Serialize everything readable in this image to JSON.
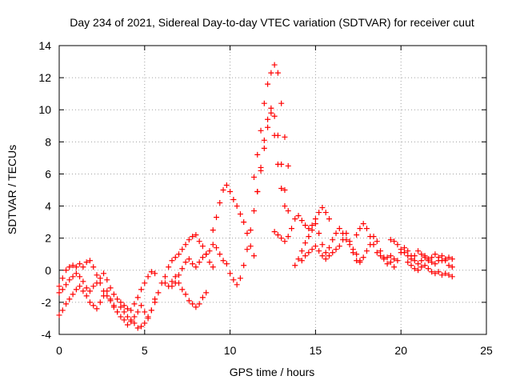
{
  "chart_data": {
    "type": "scatter",
    "title": "Day 234 of 2021, Sidereal Day-to-day VTEC variation (SDTVAR) for receiver cuut",
    "xlabel": "GPS time / hours",
    "ylabel": "SDTVAR / TECUs",
    "xlim": [
      0,
      25
    ],
    "ylim": [
      -4,
      14
    ],
    "x_ticks": [
      0,
      5,
      10,
      15,
      20,
      25
    ],
    "y_ticks": [
      -4,
      -2,
      0,
      2,
      4,
      6,
      8,
      10,
      12,
      14
    ],
    "grid": true,
    "marker": "+",
    "series": [
      {
        "name": "SDTVAR",
        "color": "#ff0000",
        "points": [
          [
            0.0,
            -1.0
          ],
          [
            0.2,
            -0.5
          ],
          [
            0.4,
            0.0
          ],
          [
            0.6,
            0.2
          ],
          [
            0.8,
            0.3
          ],
          [
            1.0,
            0.2
          ],
          [
            1.2,
            0.4
          ],
          [
            1.4,
            0.2
          ],
          [
            1.6,
            0.5
          ],
          [
            1.8,
            0.6
          ],
          [
            2.0,
            0.2
          ],
          [
            2.2,
            -0.3
          ],
          [
            2.4,
            -0.8
          ],
          [
            2.6,
            -1.3
          ],
          [
            2.8,
            -1.6
          ],
          [
            3.0,
            -1.9
          ],
          [
            3.2,
            -2.3
          ],
          [
            3.4,
            -2.6
          ],
          [
            3.6,
            -2.9
          ],
          [
            3.8,
            -3.1
          ],
          [
            4.0,
            -3.4
          ],
          [
            4.2,
            -3.2
          ],
          [
            4.4,
            -2.9
          ],
          [
            4.6,
            -2.6
          ],
          [
            4.8,
            -2.2
          ],
          [
            5.0,
            -2.6
          ],
          [
            5.2,
            -3.0
          ],
          [
            5.4,
            -2.5
          ],
          [
            5.6,
            -1.8
          ],
          [
            0.0,
            -1.4
          ],
          [
            0.2,
            -1.2
          ],
          [
            0.4,
            -0.9
          ],
          [
            0.6,
            -0.6
          ],
          [
            0.8,
            -0.4
          ],
          [
            1.0,
            -0.2
          ],
          [
            1.2,
            -0.4
          ],
          [
            1.4,
            -0.7
          ],
          [
            1.6,
            -1.1
          ],
          [
            1.8,
            -1.3
          ],
          [
            2.0,
            -1.0
          ],
          [
            2.2,
            -0.8
          ],
          [
            2.4,
            -0.5
          ],
          [
            2.6,
            -0.2
          ],
          [
            2.8,
            -0.6
          ],
          [
            3.0,
            -1.1
          ],
          [
            3.2,
            -1.5
          ],
          [
            3.4,
            -1.8
          ],
          [
            3.6,
            -2.0
          ],
          [
            3.8,
            -2.2
          ],
          [
            4.0,
            -2.4
          ],
          [
            4.2,
            -2.5
          ],
          [
            4.4,
            -2.1
          ],
          [
            4.6,
            -1.7
          ],
          [
            4.8,
            -1.2
          ],
          [
            5.0,
            -0.8
          ],
          [
            5.2,
            -0.4
          ],
          [
            5.4,
            -0.1
          ],
          [
            5.6,
            -0.2
          ],
          [
            0.0,
            -2.8
          ],
          [
            0.2,
            -2.5
          ],
          [
            0.4,
            -2.1
          ],
          [
            0.6,
            -1.8
          ],
          [
            0.8,
            -1.5
          ],
          [
            1.0,
            -1.2
          ],
          [
            1.2,
            -1.0
          ],
          [
            1.4,
            -1.3
          ],
          [
            1.6,
            -1.6
          ],
          [
            1.8,
            -2.0
          ],
          [
            2.0,
            -2.2
          ],
          [
            2.2,
            -2.4
          ],
          [
            2.4,
            -2.0
          ],
          [
            2.6,
            -1.6
          ],
          [
            2.8,
            -1.3
          ],
          [
            3.0,
            -1.8
          ],
          [
            3.2,
            -2.2
          ],
          [
            3.4,
            -2.6
          ],
          [
            3.6,
            -2.3
          ],
          [
            3.8,
            -2.6
          ],
          [
            4.0,
            -2.9
          ],
          [
            4.2,
            -3.1
          ],
          [
            4.4,
            -3.3
          ],
          [
            4.6,
            -3.6
          ],
          [
            4.8,
            -3.5
          ],
          [
            5.0,
            -3.3
          ],
          [
            5.2,
            -2.9
          ],
          [
            5.4,
            -2.5
          ],
          [
            5.6,
            -2.0
          ],
          [
            5.8,
            -1.4
          ],
          [
            6.0,
            -0.8
          ],
          [
            6.2,
            -0.4
          ],
          [
            6.4,
            0.2
          ],
          [
            6.6,
            0.6
          ],
          [
            6.8,
            0.8
          ],
          [
            7.0,
            1.0
          ],
          [
            7.2,
            1.3
          ],
          [
            7.4,
            1.6
          ],
          [
            7.6,
            1.9
          ],
          [
            7.8,
            2.1
          ],
          [
            8.0,
            2.2
          ],
          [
            8.2,
            1.8
          ],
          [
            8.4,
            1.5
          ],
          [
            8.6,
            1.0
          ],
          [
            8.8,
            0.5
          ],
          [
            9.0,
            0.2
          ],
          [
            6.2,
            -0.8
          ],
          [
            6.4,
            -1.0
          ],
          [
            6.6,
            -0.7
          ],
          [
            6.8,
            -0.4
          ],
          [
            7.0,
            -0.8
          ],
          [
            7.2,
            -1.2
          ],
          [
            7.4,
            -1.5
          ],
          [
            7.6,
            -1.9
          ],
          [
            7.8,
            -2.1
          ],
          [
            8.0,
            -2.3
          ],
          [
            8.2,
            -2.1
          ],
          [
            8.4,
            -1.7
          ],
          [
            8.6,
            -1.4
          ],
          [
            6.6,
            -1.0
          ],
          [
            6.8,
            -0.8
          ],
          [
            7.0,
            -0.3
          ],
          [
            7.2,
            0.1
          ],
          [
            7.4,
            0.5
          ],
          [
            7.6,
            0.7
          ],
          [
            7.8,
            0.4
          ],
          [
            8.0,
            0.2
          ],
          [
            8.2,
            0.5
          ],
          [
            8.4,
            0.8
          ],
          [
            8.6,
            1.0
          ],
          [
            8.8,
            1.2
          ],
          [
            9.0,
            1.6
          ],
          [
            9.2,
            1.4
          ],
          [
            9.4,
            1.0
          ],
          [
            9.0,
            2.5
          ],
          [
            9.2,
            3.3
          ],
          [
            9.4,
            4.2
          ],
          [
            9.6,
            5.0
          ],
          [
            9.8,
            5.3
          ],
          [
            10.0,
            4.9
          ],
          [
            10.2,
            4.4
          ],
          [
            10.4,
            4.0
          ],
          [
            10.6,
            3.5
          ],
          [
            10.8,
            3.0
          ],
          [
            11.0,
            2.3
          ],
          [
            11.2,
            1.5
          ],
          [
            11.4,
            0.9
          ],
          [
            9.6,
            0.6
          ],
          [
            9.8,
            0.4
          ],
          [
            10.0,
            -0.2
          ],
          [
            10.2,
            -0.6
          ],
          [
            10.4,
            -0.9
          ],
          [
            10.6,
            -0.5
          ],
          [
            10.8,
            0.3
          ],
          [
            11.0,
            1.3
          ],
          [
            11.2,
            2.5
          ],
          [
            11.4,
            3.7
          ],
          [
            11.6,
            4.9
          ],
          [
            11.8,
            6.2
          ],
          [
            12.0,
            7.6
          ],
          [
            12.2,
            8.9
          ],
          [
            12.4,
            9.8
          ],
          [
            12.6,
            8.4
          ],
          [
            12.8,
            6.6
          ],
          [
            13.0,
            5.1
          ],
          [
            13.2,
            4.0
          ],
          [
            11.4,
            5.8
          ],
          [
            11.6,
            7.2
          ],
          [
            11.8,
            8.7
          ],
          [
            12.0,
            10.4
          ],
          [
            12.2,
            11.6
          ],
          [
            12.4,
            12.3
          ],
          [
            12.6,
            12.8
          ],
          [
            12.8,
            12.3
          ],
          [
            13.0,
            10.4
          ],
          [
            13.2,
            8.3
          ],
          [
            13.4,
            6.5
          ],
          [
            11.6,
            4.9
          ],
          [
            11.8,
            6.4
          ],
          [
            12.0,
            8.1
          ],
          [
            12.2,
            9.4
          ],
          [
            12.4,
            10.1
          ],
          [
            12.6,
            9.6
          ],
          [
            12.8,
            8.4
          ],
          [
            13.0,
            6.6
          ],
          [
            13.2,
            5.0
          ],
          [
            13.4,
            3.7
          ],
          [
            12.6,
            2.4
          ],
          [
            12.8,
            2.2
          ],
          [
            13.0,
            2.0
          ],
          [
            13.2,
            1.8
          ],
          [
            13.4,
            2.1
          ],
          [
            13.6,
            2.6
          ],
          [
            13.8,
            3.2
          ],
          [
            14.0,
            3.4
          ],
          [
            14.2,
            3.1
          ],
          [
            14.4,
            2.8
          ],
          [
            14.6,
            2.6
          ],
          [
            14.8,
            2.8
          ],
          [
            15.0,
            3.2
          ],
          [
            15.2,
            3.6
          ],
          [
            15.4,
            3.9
          ],
          [
            15.6,
            3.6
          ],
          [
            15.8,
            3.2
          ],
          [
            13.8,
            0.3
          ],
          [
            14.0,
            0.7
          ],
          [
            14.2,
            1.2
          ],
          [
            14.4,
            1.7
          ],
          [
            14.6,
            2.1
          ],
          [
            14.8,
            2.5
          ],
          [
            15.0,
            2.9
          ],
          [
            15.2,
            2.3
          ],
          [
            15.4,
            1.6
          ],
          [
            15.6,
            1.1
          ],
          [
            15.8,
            1.4
          ],
          [
            16.0,
            1.9
          ],
          [
            16.2,
            2.3
          ],
          [
            16.4,
            2.6
          ],
          [
            16.6,
            2.3
          ],
          [
            16.8,
            1.9
          ],
          [
            17.0,
            1.6
          ],
          [
            17.2,
            1.3
          ],
          [
            17.4,
            1.0
          ],
          [
            14.2,
            0.6
          ],
          [
            14.4,
            0.9
          ],
          [
            14.6,
            1.1
          ],
          [
            14.8,
            1.3
          ],
          [
            15.0,
            1.5
          ],
          [
            15.2,
            1.2
          ],
          [
            15.4,
            0.9
          ],
          [
            15.6,
            0.7
          ],
          [
            15.8,
            0.9
          ],
          [
            16.0,
            1.1
          ],
          [
            16.2,
            1.3
          ],
          [
            16.4,
            1.5
          ],
          [
            16.6,
            1.9
          ],
          [
            16.8,
            2.3
          ],
          [
            17.0,
            1.8
          ],
          [
            17.2,
            1.1
          ],
          [
            17.4,
            0.6
          ],
          [
            17.6,
            0.5
          ],
          [
            17.4,
            2.2
          ],
          [
            17.6,
            2.6
          ],
          [
            17.8,
            2.9
          ],
          [
            18.0,
            2.6
          ],
          [
            18.2,
            2.1
          ],
          [
            18.4,
            1.6
          ],
          [
            18.6,
            1.1
          ],
          [
            18.8,
            0.9
          ],
          [
            19.0,
            0.7
          ],
          [
            19.2,
            0.8
          ],
          [
            19.4,
            0.9
          ],
          [
            17.6,
            0.6
          ],
          [
            17.8,
            0.8
          ],
          [
            18.0,
            1.2
          ],
          [
            18.2,
            1.6
          ],
          [
            18.4,
            2.1
          ],
          [
            18.6,
            1.8
          ],
          [
            18.8,
            1.2
          ],
          [
            19.0,
            0.8
          ],
          [
            19.2,
            0.4
          ],
          [
            19.4,
            0.5
          ],
          [
            19.6,
            0.7
          ],
          [
            19.4,
            1.9
          ],
          [
            19.6,
            1.8
          ],
          [
            19.8,
            1.6
          ],
          [
            20.0,
            1.3
          ],
          [
            20.2,
            1.1
          ],
          [
            20.4,
            0.9
          ],
          [
            20.6,
            0.7
          ],
          [
            20.8,
            0.9
          ],
          [
            21.0,
            1.2
          ],
          [
            21.2,
            1.0
          ],
          [
            21.4,
            0.8
          ],
          [
            21.6,
            0.6
          ],
          [
            21.8,
            0.8
          ],
          [
            22.0,
            1.0
          ],
          [
            22.2,
            0.8
          ],
          [
            22.4,
            0.6
          ],
          [
            22.6,
            0.7
          ],
          [
            22.8,
            0.8
          ],
          [
            23.0,
            0.7
          ],
          [
            19.6,
            0.2
          ],
          [
            19.8,
            0.6
          ],
          [
            20.0,
            1.1
          ],
          [
            20.2,
            1.4
          ],
          [
            20.4,
            1.2
          ],
          [
            20.6,
            0.9
          ],
          [
            20.8,
            0.6
          ],
          [
            21.0,
            0.4
          ],
          [
            21.2,
            0.6
          ],
          [
            21.4,
            0.9
          ],
          [
            21.6,
            0.7
          ],
          [
            21.8,
            0.5
          ],
          [
            22.0,
            0.4
          ],
          [
            22.2,
            0.6
          ],
          [
            22.4,
            0.9
          ],
          [
            22.6,
            0.6
          ],
          [
            22.8,
            0.3
          ],
          [
            23.0,
            0.2
          ],
          [
            20.4,
            0.5
          ],
          [
            20.6,
            0.3
          ],
          [
            20.8,
            0.1
          ],
          [
            21.0,
            0.0
          ],
          [
            21.2,
            0.2
          ],
          [
            21.4,
            0.3
          ],
          [
            21.6,
            0.1
          ],
          [
            21.8,
            -0.1
          ],
          [
            22.0,
            -0.2
          ],
          [
            22.2,
            -0.1
          ],
          [
            22.4,
            -0.3
          ],
          [
            22.6,
            -0.2
          ],
          [
            22.8,
            -0.3
          ],
          [
            23.0,
            -0.4
          ]
        ]
      }
    ]
  }
}
